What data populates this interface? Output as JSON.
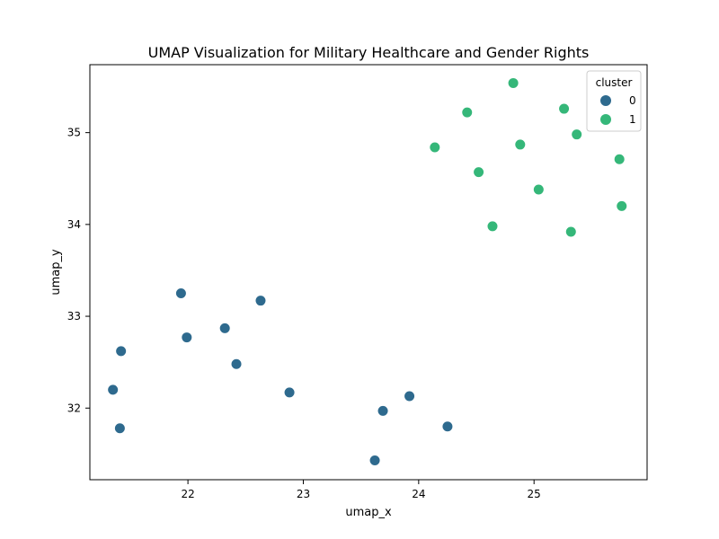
{
  "chart_data": {
    "type": "scatter",
    "title": "UMAP Visualization for Military Healthcare and Gender Rights",
    "xlabel": "umap_x",
    "ylabel": "umap_y",
    "xlim": [
      21.15,
      25.98
    ],
    "ylim": [
      31.22,
      35.74
    ],
    "xticks": [
      22,
      23,
      24,
      25
    ],
    "yticks": [
      32,
      33,
      34,
      35
    ],
    "grid": false,
    "legend": {
      "title": "cluster",
      "placement": "top-right",
      "entries": [
        {
          "label": "0",
          "color": "#2e6a8e"
        },
        {
          "label": "1",
          "color": "#35b779"
        }
      ]
    },
    "series": [
      {
        "name": "0",
        "color": "#2e6a8e",
        "points": [
          [
            21.42,
            32.62
          ],
          [
            21.35,
            32.2
          ],
          [
            21.41,
            31.78
          ],
          [
            21.94,
            33.25
          ],
          [
            21.99,
            32.77
          ],
          [
            22.32,
            32.87
          ],
          [
            22.42,
            32.48
          ],
          [
            22.63,
            33.17
          ],
          [
            22.88,
            32.17
          ],
          [
            23.62,
            31.43
          ],
          [
            23.69,
            31.97
          ],
          [
            23.92,
            32.13
          ],
          [
            24.25,
            31.8
          ]
        ]
      },
      {
        "name": "1",
        "color": "#35b779",
        "points": [
          [
            24.14,
            34.84
          ],
          [
            24.42,
            35.22
          ],
          [
            24.52,
            34.57
          ],
          [
            24.64,
            33.98
          ],
          [
            24.82,
            35.54
          ],
          [
            24.88,
            34.87
          ],
          [
            25.04,
            34.38
          ],
          [
            25.26,
            35.26
          ],
          [
            25.32,
            33.92
          ],
          [
            25.37,
            34.98
          ],
          [
            25.74,
            34.71
          ],
          [
            25.76,
            34.2
          ]
        ]
      }
    ]
  }
}
